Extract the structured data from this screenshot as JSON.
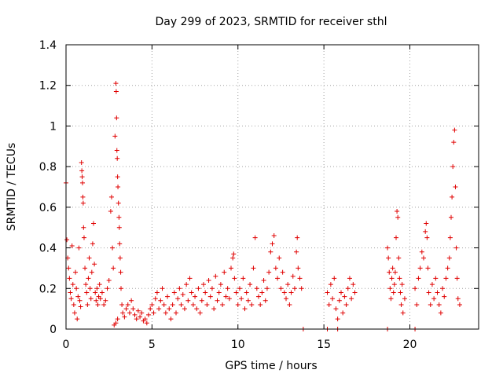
{
  "chart_data": {
    "type": "scatter",
    "title": "Day 299 of 2023, SRMTID for receiver sthl",
    "xlabel": "GPS time / hours",
    "ylabel": "SRMTID / TECUs",
    "xlim": [
      0,
      24
    ],
    "ylim": [
      0,
      1.4
    ],
    "xticks": [
      0,
      5,
      10,
      15,
      20
    ],
    "xtick_labels": [
      "0",
      "5",
      "10",
      "15",
      "20"
    ],
    "yticks": [
      0,
      0.2,
      0.4,
      0.6,
      0.8,
      1,
      1.2,
      1.4
    ],
    "ytick_labels": [
      "0",
      "0.2",
      "0.4",
      "0.6",
      "0.8",
      "1",
      "1.2",
      "1.4"
    ],
    "grid": true,
    "marker": "+",
    "marker_color": "#e00000",
    "series": [
      {
        "name": "sthl",
        "points": [
          [
            0.0,
            0.72
          ],
          [
            0.05,
            0.44
          ],
          [
            0.1,
            0.35
          ],
          [
            0.15,
            0.3
          ],
          [
            0.2,
            0.25
          ],
          [
            0.25,
            0.18
          ],
          [
            0.3,
            0.15
          ],
          [
            0.35,
            0.41
          ],
          [
            0.4,
            0.22
          ],
          [
            0.45,
            0.12
          ],
          [
            0.5,
            0.08
          ],
          [
            0.55,
            0.28
          ],
          [
            0.6,
            0.2
          ],
          [
            0.65,
            0.05
          ],
          [
            0.7,
            0.16
          ],
          [
            0.75,
            0.4
          ],
          [
            0.8,
            0.14
          ],
          [
            0.85,
            0.11
          ],
          [
            0.9,
            0.82
          ],
          [
            0.92,
            0.78
          ],
          [
            0.94,
            0.75
          ],
          [
            0.96,
            0.72
          ],
          [
            0.98,
            0.65
          ],
          [
            1.0,
            0.62
          ],
          [
            1.02,
            0.5
          ],
          [
            1.05,
            0.45
          ],
          [
            1.1,
            0.3
          ],
          [
            1.15,
            0.22
          ],
          [
            1.2,
            0.18
          ],
          [
            1.25,
            0.12
          ],
          [
            1.3,
            0.25
          ],
          [
            1.35,
            0.35
          ],
          [
            1.4,
            0.2
          ],
          [
            1.45,
            0.15
          ],
          [
            1.5,
            0.28
          ],
          [
            1.55,
            0.42
          ],
          [
            1.6,
            0.52
          ],
          [
            1.65,
            0.32
          ],
          [
            1.7,
            0.18
          ],
          [
            1.75,
            0.14
          ],
          [
            1.8,
            0.2
          ],
          [
            1.85,
            0.12
          ],
          [
            1.9,
            0.16
          ],
          [
            1.95,
            0.22
          ],
          [
            2.0,
            0.15
          ],
          [
            2.1,
            0.18
          ],
          [
            2.2,
            0.12
          ],
          [
            2.3,
            0.14
          ],
          [
            2.4,
            0.2
          ],
          [
            2.5,
            0.24
          ],
          [
            2.6,
            0.58
          ],
          [
            2.65,
            0.65
          ],
          [
            2.7,
            0.4
          ],
          [
            2.75,
            0.3
          ],
          [
            2.85,
            0.95
          ],
          [
            2.9,
            1.21
          ],
          [
            2.92,
            1.17
          ],
          [
            2.94,
            1.04
          ],
          [
            2.96,
            0.88
          ],
          [
            2.98,
            0.84
          ],
          [
            3.0,
            0.75
          ],
          [
            3.02,
            0.7
          ],
          [
            3.05,
            0.62
          ],
          [
            3.08,
            0.55
          ],
          [
            3.1,
            0.5
          ],
          [
            3.12,
            0.42
          ],
          [
            3.15,
            0.35
          ],
          [
            3.18,
            0.28
          ],
          [
            3.2,
            0.2
          ],
          [
            3.25,
            0.12
          ],
          [
            3.3,
            0.08
          ],
          [
            2.8,
            0.02
          ],
          [
            2.9,
            0.03
          ],
          [
            3.0,
            0.05
          ],
          [
            3.4,
            0.06
          ],
          [
            3.5,
            0.1
          ],
          [
            3.6,
            0.12
          ],
          [
            3.7,
            0.08
          ],
          [
            3.8,
            0.14
          ],
          [
            3.9,
            0.1
          ],
          [
            4.0,
            0.07
          ],
          [
            4.1,
            0.05
          ],
          [
            4.2,
            0.09
          ],
          [
            4.3,
            0.06
          ],
          [
            4.4,
            0.08
          ],
          [
            4.5,
            0.04
          ],
          [
            4.6,
            0.05
          ],
          [
            4.7,
            0.03
          ],
          [
            4.8,
            0.07
          ],
          [
            4.9,
            0.1
          ],
          [
            5.0,
            0.12
          ],
          [
            5.1,
            0.08
          ],
          [
            5.2,
            0.15
          ],
          [
            5.3,
            0.18
          ],
          [
            5.4,
            0.1
          ],
          [
            5.5,
            0.14
          ],
          [
            5.6,
            0.2
          ],
          [
            5.7,
            0.12
          ],
          [
            5.8,
            0.08
          ],
          [
            5.9,
            0.16
          ],
          [
            6.0,
            0.1
          ],
          [
            6.1,
            0.05
          ],
          [
            6.2,
            0.12
          ],
          [
            6.3,
            0.18
          ],
          [
            6.4,
            0.08
          ],
          [
            6.5,
            0.15
          ],
          [
            6.6,
            0.2
          ],
          [
            6.7,
            0.12
          ],
          [
            6.8,
            0.17
          ],
          [
            6.9,
            0.1
          ],
          [
            7.0,
            0.22
          ],
          [
            7.1,
            0.14
          ],
          [
            7.2,
            0.25
          ],
          [
            7.3,
            0.18
          ],
          [
            7.4,
            0.12
          ],
          [
            7.5,
            0.16
          ],
          [
            7.6,
            0.1
          ],
          [
            7.7,
            0.2
          ],
          [
            7.8,
            0.08
          ],
          [
            7.9,
            0.14
          ],
          [
            8.0,
            0.22
          ],
          [
            8.1,
            0.18
          ],
          [
            8.2,
            0.12
          ],
          [
            8.3,
            0.24
          ],
          [
            8.4,
            0.16
          ],
          [
            8.5,
            0.2
          ],
          [
            8.6,
            0.1
          ],
          [
            8.7,
            0.26
          ],
          [
            8.8,
            0.14
          ],
          [
            8.9,
            0.18
          ],
          [
            9.0,
            0.22
          ],
          [
            9.1,
            0.12
          ],
          [
            9.2,
            0.28
          ],
          [
            9.3,
            0.16
          ],
          [
            9.4,
            0.2
          ],
          [
            9.5,
            0.15
          ],
          [
            9.6,
            0.3
          ],
          [
            9.7,
            0.35
          ],
          [
            9.75,
            0.37
          ],
          [
            9.8,
            0.25
          ],
          [
            9.9,
            0.18
          ],
          [
            10.0,
            0.12
          ],
          [
            10.1,
            0.2
          ],
          [
            10.2,
            0.15
          ],
          [
            10.3,
            0.25
          ],
          [
            10.4,
            0.1
          ],
          [
            10.5,
            0.18
          ],
          [
            10.6,
            0.14
          ],
          [
            10.7,
            0.22
          ],
          [
            10.8,
            0.12
          ],
          [
            10.9,
            0.3
          ],
          [
            11.0,
            0.45
          ],
          [
            11.1,
            0.2
          ],
          [
            11.2,
            0.16
          ],
          [
            11.3,
            0.12
          ],
          [
            11.4,
            0.18
          ],
          [
            11.5,
            0.24
          ],
          [
            11.6,
            0.14
          ],
          [
            11.7,
            0.2
          ],
          [
            11.8,
            0.28
          ],
          [
            11.9,
            0.38
          ],
          [
            12.0,
            0.42
          ],
          [
            12.1,
            0.46
          ],
          [
            12.2,
            0.3
          ],
          [
            12.3,
            0.25
          ],
          [
            12.4,
            0.35
          ],
          [
            12.5,
            0.2
          ],
          [
            12.6,
            0.28
          ],
          [
            12.7,
            0.18
          ],
          [
            12.8,
            0.15
          ],
          [
            12.9,
            0.22
          ],
          [
            13.0,
            0.12
          ],
          [
            13.1,
            0.18
          ],
          [
            13.2,
            0.26
          ],
          [
            13.3,
            0.2
          ],
          [
            13.4,
            0.38
          ],
          [
            13.45,
            0.45
          ],
          [
            13.5,
            0.3
          ],
          [
            13.6,
            0.25
          ],
          [
            13.7,
            0.2
          ],
          [
            13.8,
            0.0
          ],
          [
            15.2,
            0.18
          ],
          [
            15.3,
            0.12
          ],
          [
            15.4,
            0.22
          ],
          [
            15.5,
            0.15
          ],
          [
            15.6,
            0.25
          ],
          [
            15.7,
            0.1
          ],
          [
            15.8,
            0.05
          ],
          [
            15.9,
            0.14
          ],
          [
            16.0,
            0.18
          ],
          [
            16.1,
            0.08
          ],
          [
            16.2,
            0.16
          ],
          [
            16.3,
            0.12
          ],
          [
            16.4,
            0.2
          ],
          [
            16.5,
            0.25
          ],
          [
            16.6,
            0.15
          ],
          [
            16.7,
            0.22
          ],
          [
            16.8,
            0.18
          ],
          [
            15.2,
            0.0
          ],
          [
            15.8,
            0.0
          ],
          [
            18.7,
            0.4
          ],
          [
            18.75,
            0.35
          ],
          [
            18.8,
            0.28
          ],
          [
            18.85,
            0.2
          ],
          [
            18.9,
            0.15
          ],
          [
            18.95,
            0.25
          ],
          [
            19.0,
            0.3
          ],
          [
            19.05,
            0.18
          ],
          [
            19.1,
            0.22
          ],
          [
            19.15,
            0.28
          ],
          [
            19.2,
            0.45
          ],
          [
            19.25,
            0.58
          ],
          [
            19.3,
            0.55
          ],
          [
            19.35,
            0.35
          ],
          [
            19.4,
            0.25
          ],
          [
            19.45,
            0.18
          ],
          [
            19.5,
            0.12
          ],
          [
            19.55,
            0.22
          ],
          [
            19.6,
            0.08
          ],
          [
            19.7,
            0.15
          ],
          [
            18.7,
            0.0
          ],
          [
            20.3,
            0.2
          ],
          [
            20.4,
            0.12
          ],
          [
            20.5,
            0.25
          ],
          [
            20.6,
            0.3
          ],
          [
            20.7,
            0.38
          ],
          [
            20.8,
            0.35
          ],
          [
            20.9,
            0.48
          ],
          [
            20.95,
            0.52
          ],
          [
            21.0,
            0.45
          ],
          [
            21.05,
            0.3
          ],
          [
            21.1,
            0.18
          ],
          [
            21.2,
            0.12
          ],
          [
            21.3,
            0.22
          ],
          [
            21.4,
            0.15
          ],
          [
            21.5,
            0.25
          ],
          [
            21.6,
            0.18
          ],
          [
            21.7,
            0.12
          ],
          [
            21.8,
            0.08
          ],
          [
            21.9,
            0.2
          ],
          [
            22.0,
            0.16
          ],
          [
            22.1,
            0.25
          ],
          [
            22.2,
            0.3
          ],
          [
            22.3,
            0.35
          ],
          [
            22.35,
            0.45
          ],
          [
            22.4,
            0.55
          ],
          [
            22.45,
            0.65
          ],
          [
            22.5,
            0.8
          ],
          [
            22.55,
            0.92
          ],
          [
            22.6,
            0.98
          ],
          [
            22.65,
            0.7
          ],
          [
            22.7,
            0.4
          ],
          [
            22.75,
            0.25
          ],
          [
            22.8,
            0.15
          ],
          [
            22.9,
            0.12
          ],
          [
            20.3,
            0.0
          ]
        ]
      }
    ]
  }
}
